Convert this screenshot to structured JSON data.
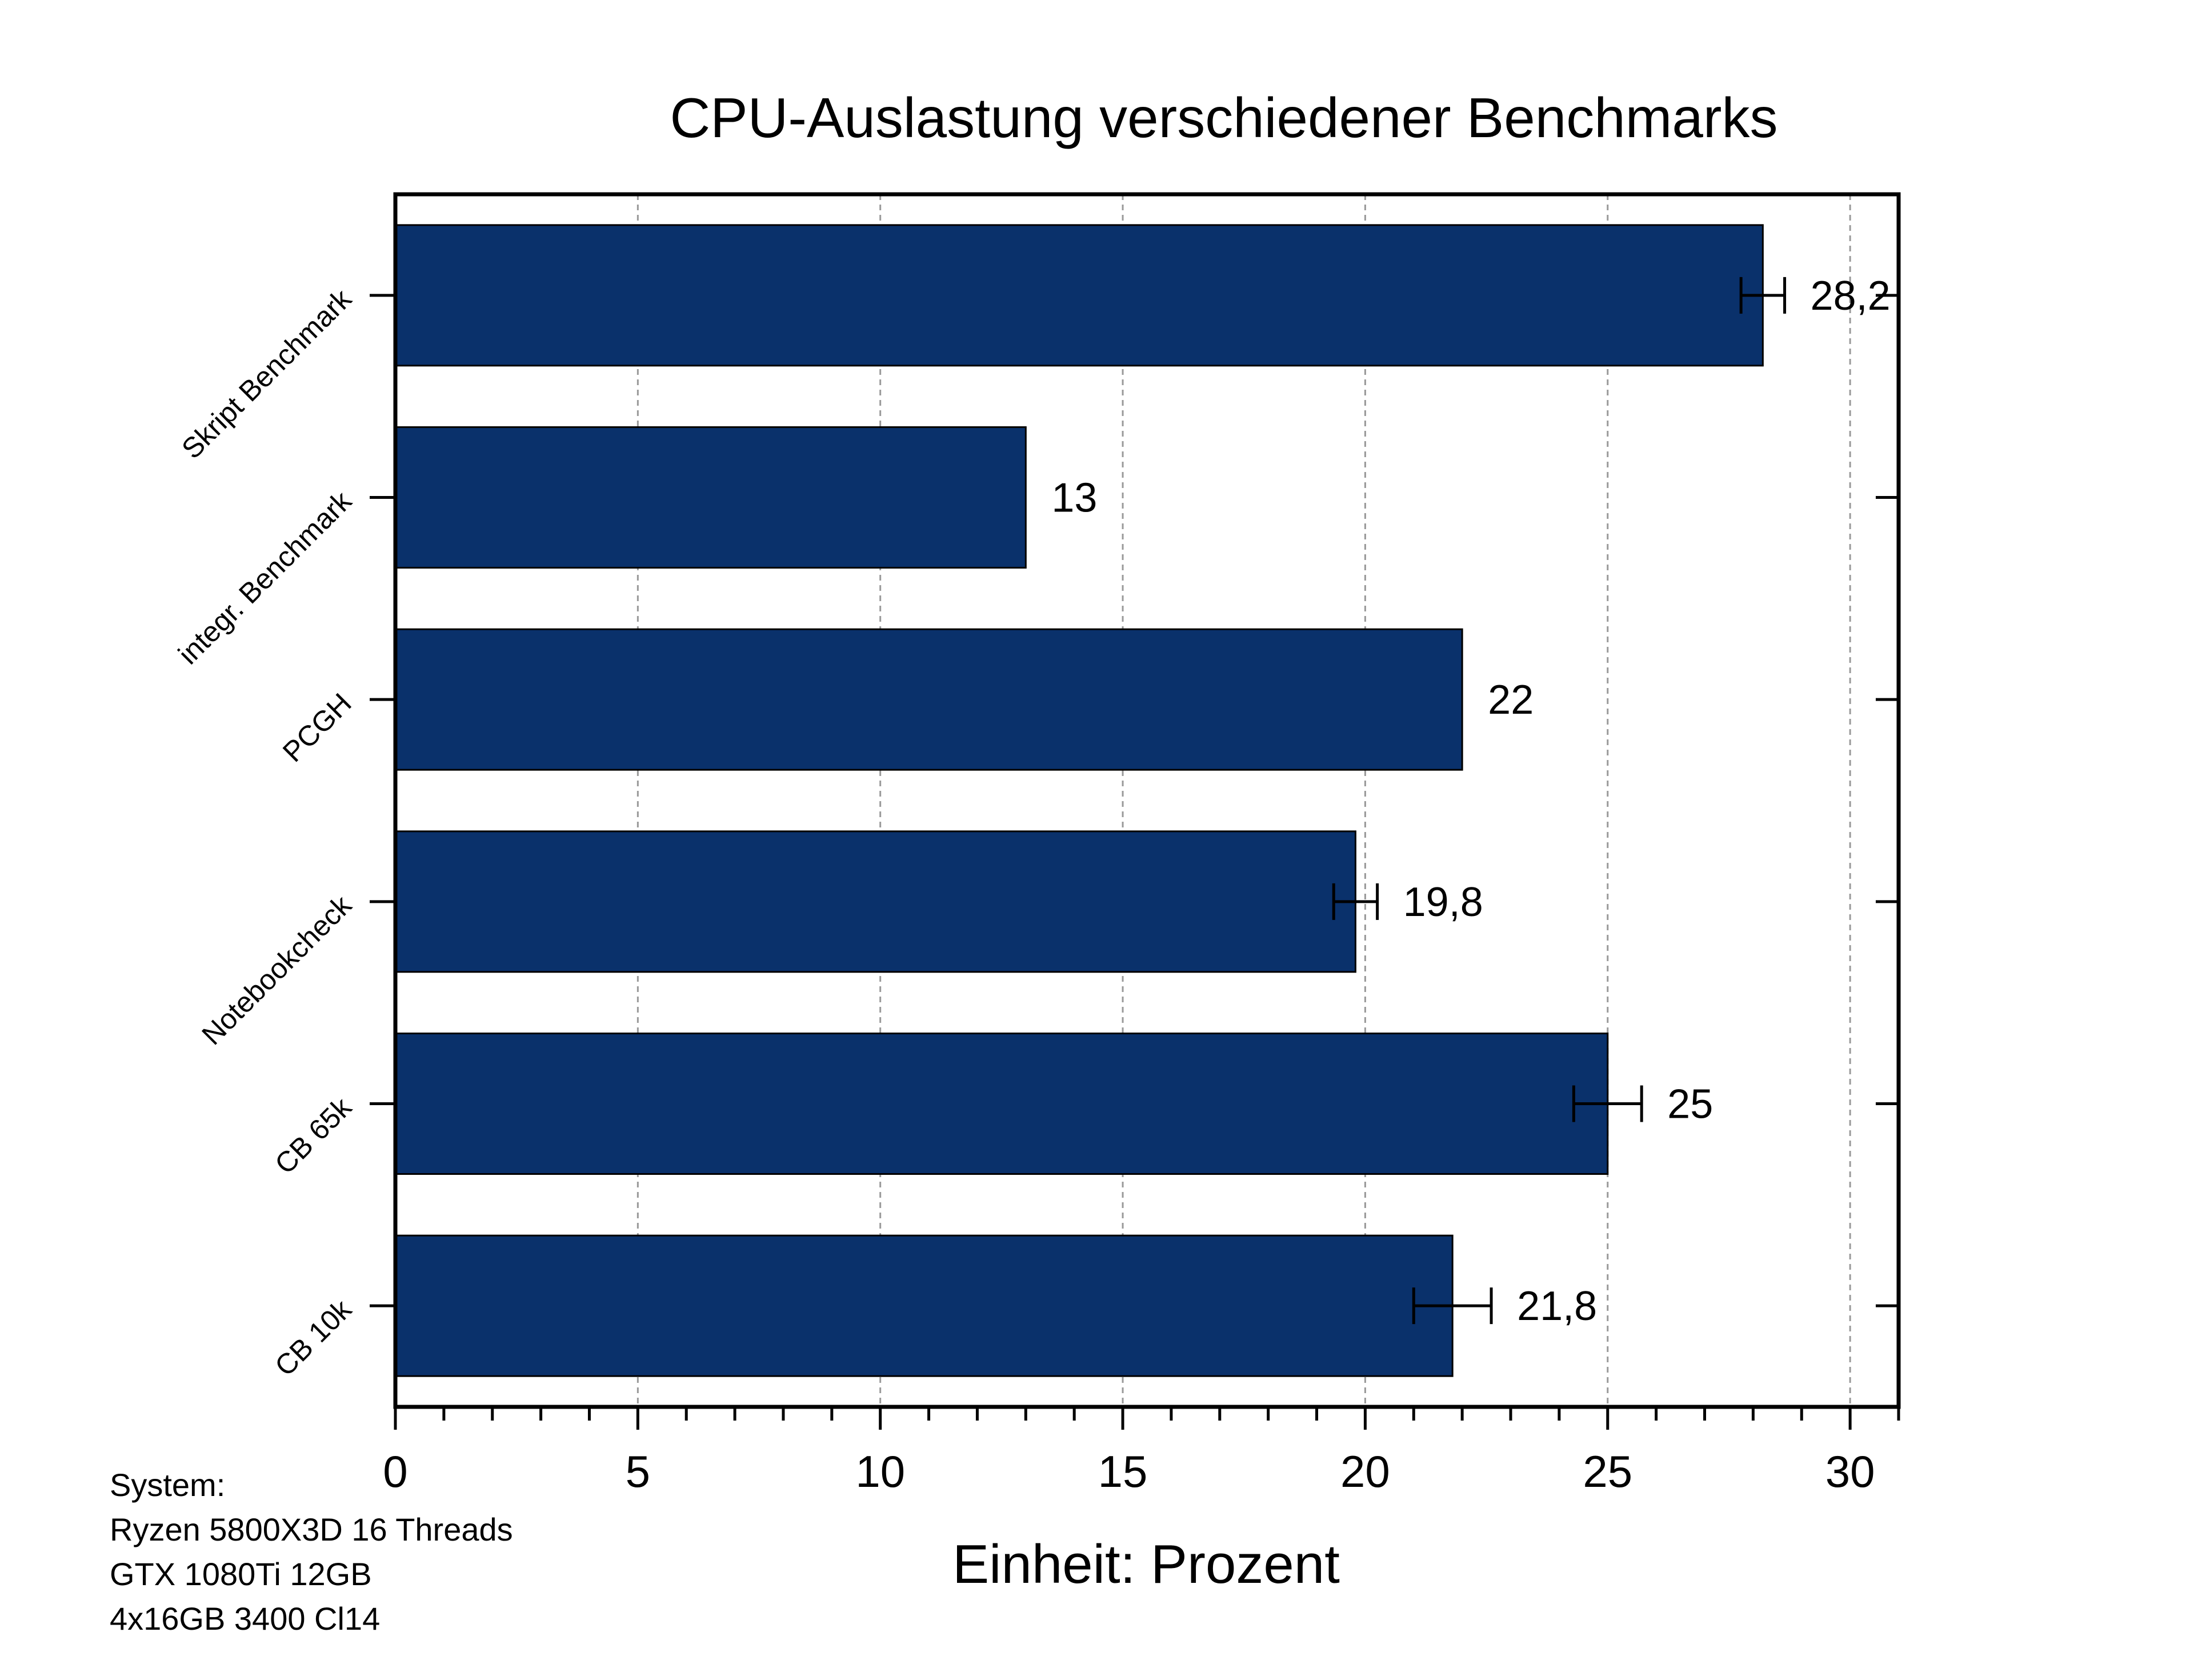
{
  "chart_data": {
    "type": "bar",
    "orientation": "horizontal",
    "title": "CPU-Auslastung verschiedener Benchmarks",
    "xlabel": "Einheit: Prozent",
    "ylabel": "",
    "categories": [
      "Skript Benchmark",
      "integr. Benchmark",
      "PCGH",
      "Notebookcheck",
      "CB 65k",
      "CB 10k"
    ],
    "values": [
      28.2,
      13,
      22,
      19.8,
      25,
      21.8
    ],
    "value_labels": [
      "28,2",
      "13",
      "22",
      "19,8",
      "25",
      "21,8"
    ],
    "error": [
      0.45,
      null,
      null,
      0.45,
      0.7,
      0.8
    ],
    "xlim": [
      0,
      31
    ],
    "xticks": [
      0,
      5,
      10,
      15,
      20,
      25,
      30
    ],
    "grid": "vertical dashed",
    "bar_color": "#0a316b"
  },
  "system_note": [
    "System:",
    "Ryzen 5800X3D 16 Threads",
    "GTX 1080Ti 12GB",
    "4x16GB 3400 Cl14"
  ]
}
